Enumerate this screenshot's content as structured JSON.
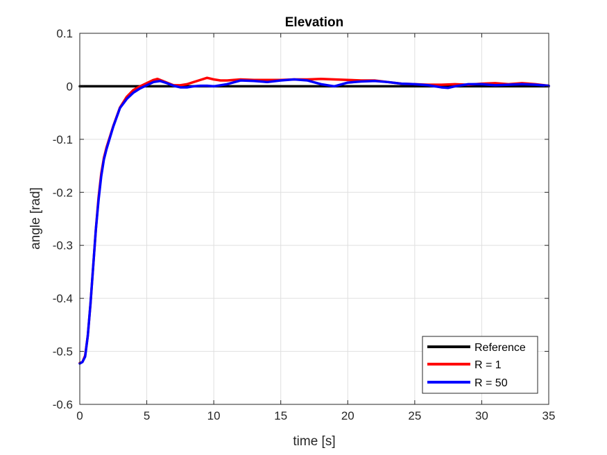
{
  "chart_data": {
    "type": "line",
    "title": "Elevation",
    "xlabel": "time [s]",
    "ylabel": "angle [rad]",
    "xlim": [
      0,
      35
    ],
    "ylim": [
      -0.6,
      0.1
    ],
    "xticks": [
      0,
      5,
      10,
      15,
      20,
      25,
      30,
      35
    ],
    "xtick_labels": [
      "0",
      "5",
      "10",
      "15",
      "20",
      "25",
      "30",
      "35"
    ],
    "yticks": [
      0.1,
      0,
      -0.1,
      -0.2,
      -0.3,
      -0.4,
      -0.5,
      -0.6
    ],
    "ytick_labels": [
      "0.1",
      "0",
      "-0.1",
      "-0.2",
      "-0.3",
      "-0.4",
      "-0.5",
      "-0.6"
    ],
    "grid": true,
    "legend_position": "bottom-right",
    "series": [
      {
        "name": "Reference",
        "color": "#000000",
        "x": [
          0,
          35
        ],
        "y": [
          0,
          0
        ]
      },
      {
        "name": "R = 1",
        "color": "#ff0000",
        "x": [
          0,
          0.2,
          0.4,
          0.6,
          0.8,
          1.0,
          1.2,
          1.4,
          1.6,
          1.8,
          2.0,
          2.5,
          3.0,
          3.5,
          4.0,
          4.5,
          5.0,
          5.5,
          5.8,
          6.2,
          6.6,
          7.0,
          7.5,
          8.0,
          8.5,
          9.0,
          9.5,
          10.0,
          10.5,
          11.0,
          11.5,
          12.0,
          13.0,
          14.0,
          15.0,
          16.0,
          17.0,
          18.0,
          19.0,
          20.0,
          21.0,
          22.0,
          23.0,
          24.0,
          25.0,
          26.0,
          27.0,
          28.0,
          29.0,
          30.0,
          31.0,
          32.0,
          33.0,
          34.0,
          35.0
        ],
        "y": [
          -0.522,
          -0.52,
          -0.508,
          -0.47,
          -0.41,
          -0.34,
          -0.27,
          -0.21,
          -0.165,
          -0.135,
          -0.115,
          -0.075,
          -0.04,
          -0.02,
          -0.007,
          0.0,
          0.006,
          0.012,
          0.014,
          0.01,
          0.006,
          0.002,
          0.002,
          0.004,
          0.008,
          0.012,
          0.016,
          0.013,
          0.011,
          0.011,
          0.012,
          0.013,
          0.012,
          0.012,
          0.012,
          0.013,
          0.013,
          0.014,
          0.013,
          0.012,
          0.011,
          0.011,
          0.008,
          0.005,
          0.004,
          0.003,
          0.003,
          0.004,
          0.003,
          0.005,
          0.006,
          0.004,
          0.006,
          0.004,
          0.001
        ]
      },
      {
        "name": "R = 50",
        "color": "#0000ff",
        "x": [
          0,
          0.2,
          0.4,
          0.6,
          0.8,
          1.0,
          1.2,
          1.4,
          1.6,
          1.8,
          2.0,
          2.5,
          3.0,
          3.5,
          4.0,
          4.5,
          5.0,
          5.5,
          6.0,
          6.5,
          7.0,
          7.5,
          8.0,
          8.5,
          9.0,
          9.5,
          10.0,
          11.0,
          12.0,
          13.0,
          14.0,
          15.0,
          16.0,
          17.0,
          18.0,
          19.0,
          20.0,
          21.0,
          22.0,
          23.0,
          24.0,
          25.0,
          26.0,
          27.0,
          27.5,
          28.0,
          29.0,
          30.0,
          31.0,
          32.0,
          33.0,
          34.0,
          35.0
        ],
        "y": [
          -0.523,
          -0.52,
          -0.51,
          -0.47,
          -0.41,
          -0.34,
          -0.27,
          -0.215,
          -0.17,
          -0.138,
          -0.118,
          -0.076,
          -0.041,
          -0.024,
          -0.012,
          -0.004,
          0.002,
          0.008,
          0.01,
          0.006,
          0.001,
          -0.002,
          -0.002,
          0.0,
          0.001,
          0.001,
          0.0,
          0.004,
          0.011,
          0.01,
          0.008,
          0.011,
          0.013,
          0.011,
          0.004,
          0.0,
          0.007,
          0.009,
          0.01,
          0.008,
          0.005,
          0.004,
          0.002,
          -0.002,
          -0.003,
          0.0,
          0.004,
          0.004,
          0.002,
          0.003,
          0.004,
          0.003,
          0.001
        ]
      }
    ]
  }
}
